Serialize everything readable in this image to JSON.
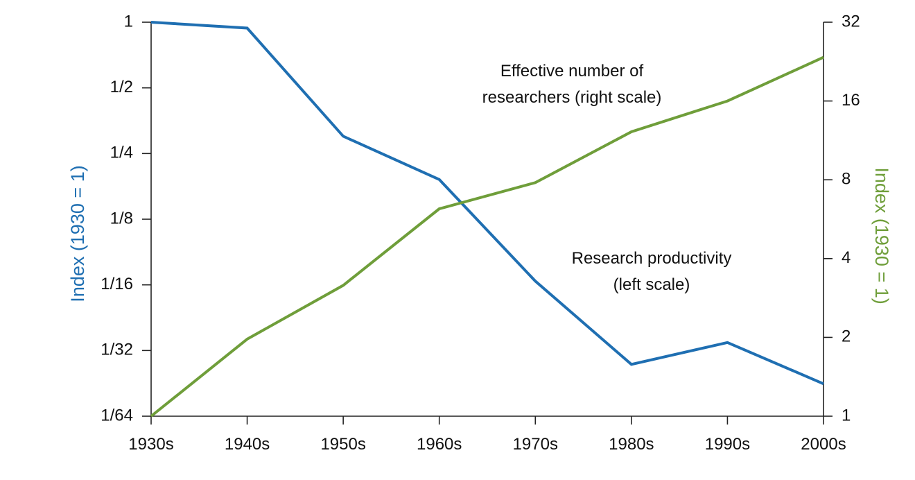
{
  "chart_data": {
    "type": "line",
    "categories": [
      "1930s",
      "1940s",
      "1950s",
      "1960s",
      "1970s",
      "1980s",
      "1990s",
      "2000s"
    ],
    "left_axis": {
      "label": "Index (1930 = 1)",
      "scale": "log2",
      "ticks": [
        {
          "value": 1,
          "label": "1"
        },
        {
          "value": 0.5,
          "label": "1/2"
        },
        {
          "value": 0.25,
          "label": "1/4"
        },
        {
          "value": 0.125,
          "label": "1/8"
        },
        {
          "value": 0.0625,
          "label": "1/16"
        },
        {
          "value": 0.03125,
          "label": "1/32"
        },
        {
          "value": 0.015625,
          "label": "1/64"
        }
      ],
      "range": [
        0.015625,
        1
      ]
    },
    "right_axis": {
      "label": "Index (1930 = 1)",
      "scale": "log2",
      "ticks": [
        {
          "value": 32,
          "label": "32"
        },
        {
          "value": 16,
          "label": "16"
        },
        {
          "value": 8,
          "label": "8"
        },
        {
          "value": 4,
          "label": "4"
        },
        {
          "value": 2,
          "label": "2"
        },
        {
          "value": 1,
          "label": "1"
        }
      ],
      "range": [
        1,
        32
      ]
    },
    "series": [
      {
        "axis": "left",
        "color": "#1f6fb2",
        "values": [
          1,
          0.94,
          0.3,
          0.19,
          0.065,
          0.027,
          0.034,
          0.022
        ]
      },
      {
        "axis": "right",
        "color": "#6f9e3a",
        "values": [
          1,
          1.97,
          3.16,
          6.2,
          7.8,
          12.2,
          16.0,
          23.5
        ]
      }
    ],
    "annotations": [
      {
        "id": "researchers",
        "lines": [
          "Effective number of",
          "researchers (right scale)"
        ]
      },
      {
        "id": "productivity",
        "lines": [
          "Research productivity",
          "(left scale)"
        ]
      }
    ],
    "grid": false,
    "legend": "none (inline labels)"
  }
}
